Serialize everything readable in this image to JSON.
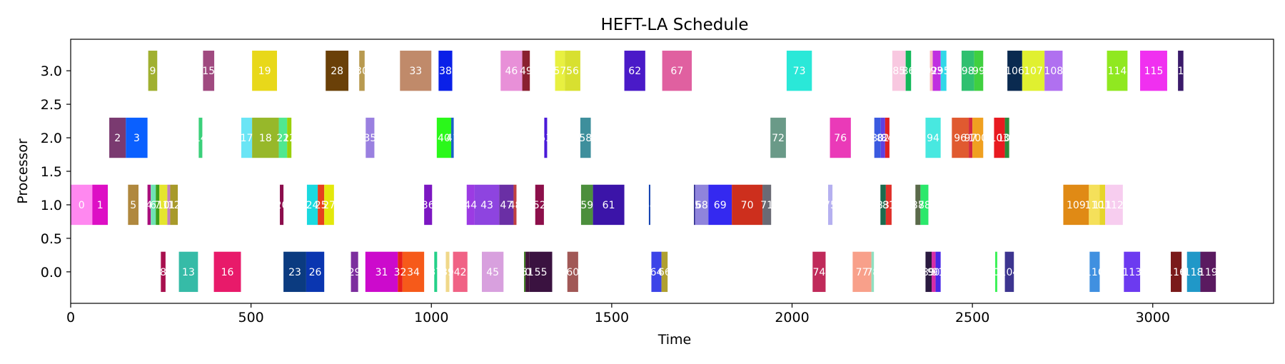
{
  "chart_data": {
    "type": "gantt",
    "title": "HEFT-LA Schedule",
    "xlabel": "Time",
    "ylabel": "Processor",
    "xlim": [
      0,
      3335
    ],
    "ylim": [
      -0.47,
      3.47
    ],
    "xticks": [
      0,
      500,
      1000,
      1500,
      2000,
      2500,
      3000
    ],
    "yticks": [
      0.0,
      0.5,
      1.0,
      1.5,
      2.0,
      2.5,
      3.0
    ],
    "xtick_labels": [
      "0",
      "500",
      "1000",
      "1500",
      "2000",
      "2500",
      "3000"
    ],
    "ytick_labels": [
      "0.0",
      "0.5",
      "1.0",
      "1.5",
      "2.0",
      "2.5",
      "3.0"
    ],
    "bar_height": 0.6,
    "grid": false,
    "tasks": [
      {
        "label": "0",
        "proc": 1,
        "start": 0,
        "end": 60,
        "color": "#ff88f0"
      },
      {
        "label": "1",
        "proc": 1,
        "start": 60,
        "end": 103,
        "color": "#dd0fc5"
      },
      {
        "label": "5",
        "proc": 1,
        "start": 159,
        "end": 188,
        "color": "#b0883e"
      },
      {
        "label": "4",
        "proc": 1,
        "start": 213,
        "end": 222,
        "color": "#a80e7c"
      },
      {
        "label": "6",
        "proc": 1,
        "start": 222,
        "end": 236,
        "color": "#6fe3b3"
      },
      {
        "label": "7",
        "proc": 1,
        "start": 236,
        "end": 246,
        "color": "#3c9e1a"
      },
      {
        "label": "10",
        "proc": 1,
        "start": 246,
        "end": 268,
        "color": "#e5e52e"
      },
      {
        "label": "11",
        "proc": 1,
        "start": 268,
        "end": 276,
        "color": "#c080c0"
      },
      {
        "label": "12",
        "proc": 1,
        "start": 276,
        "end": 297,
        "color": "#a89a2a"
      },
      {
        "label": "20",
        "proc": 1,
        "start": 580,
        "end": 590,
        "color": "#8b0d4c"
      },
      {
        "label": "24",
        "proc": 1,
        "start": 655,
        "end": 685,
        "color": "#1ad9df"
      },
      {
        "label": "25",
        "proc": 1,
        "start": 685,
        "end": 703,
        "color": "#e6401e"
      },
      {
        "label": "27",
        "proc": 1,
        "start": 703,
        "end": 730,
        "color": "#e3e80b"
      },
      {
        "label": "36",
        "proc": 1,
        "start": 980,
        "end": 1002,
        "color": "#7c17c2"
      },
      {
        "label": "44",
        "proc": 1,
        "start": 1098,
        "end": 1120,
        "color": "#9c3be3"
      },
      {
        "label": "43",
        "proc": 1,
        "start": 1120,
        "end": 1188,
        "color": "#8e44e0"
      },
      {
        "label": "47",
        "proc": 1,
        "start": 1188,
        "end": 1228,
        "color": "#6a2fa5"
      },
      {
        "label": "48",
        "proc": 1,
        "start": 1228,
        "end": 1236,
        "color": "#c04040"
      },
      {
        "label": "52",
        "proc": 1,
        "start": 1288,
        "end": 1312,
        "color": "#8c0f4a"
      },
      {
        "label": "59",
        "proc": 1,
        "start": 1415,
        "end": 1448,
        "color": "#4c8f3c"
      },
      {
        "label": "61",
        "proc": 1,
        "start": 1448,
        "end": 1535,
        "color": "#3b14a8"
      },
      {
        "label": "64",
        "proc": 1,
        "start": 1603,
        "end": 1607,
        "color": "#1040b0"
      },
      {
        "label": "65",
        "proc": 1,
        "start": 1728,
        "end": 1731,
        "color": "#1a1a80"
      },
      {
        "label": "68",
        "proc": 1,
        "start": 1731,
        "end": 1768,
        "color": "#8f84dc"
      },
      {
        "label": "69",
        "proc": 1,
        "start": 1768,
        "end": 1833,
        "color": "#3429f0"
      },
      {
        "label": "70",
        "proc": 1,
        "start": 1833,
        "end": 1918,
        "color": "#cd2f1d"
      },
      {
        "label": "71",
        "proc": 1,
        "start": 1918,
        "end": 1942,
        "color": "#6a6a74"
      },
      {
        "label": "75",
        "proc": 1,
        "start": 2100,
        "end": 2112,
        "color": "#b5b0f0"
      },
      {
        "label": "83",
        "proc": 1,
        "start": 2245,
        "end": 2260,
        "color": "#1b6b4e"
      },
      {
        "label": "81",
        "proc": 1,
        "start": 2260,
        "end": 2276,
        "color": "#e0302a"
      },
      {
        "label": "87",
        "proc": 1,
        "start": 2342,
        "end": 2356,
        "color": "#5a6a4a"
      },
      {
        "label": "88",
        "proc": 1,
        "start": 2356,
        "end": 2378,
        "color": "#2be86b"
      },
      {
        "label": "109",
        "proc": 1,
        "start": 2752,
        "end": 2823,
        "color": "#e08a15"
      },
      {
        "label": "110",
        "proc": 1,
        "start": 2823,
        "end": 2853,
        "color": "#f5e05a"
      },
      {
        "label": "111",
        "proc": 1,
        "start": 2853,
        "end": 2868,
        "color": "#e6d52a"
      },
      {
        "label": "112",
        "proc": 1,
        "start": 2868,
        "end": 2917,
        "color": "#f7cdef"
      },
      {
        "label": "8",
        "proc": 0,
        "start": 250,
        "end": 263,
        "color": "#a8104e"
      },
      {
        "label": "13",
        "proc": 0,
        "start": 300,
        "end": 353,
        "color": "#36bba7"
      },
      {
        "label": "16",
        "proc": 0,
        "start": 397,
        "end": 472,
        "color": "#e81a6a"
      },
      {
        "label": "23",
        "proc": 0,
        "start": 590,
        "end": 653,
        "color": "#0b3b80"
      },
      {
        "label": "26",
        "proc": 0,
        "start": 653,
        "end": 703,
        "color": "#0a36b0"
      },
      {
        "label": "29",
        "proc": 0,
        "start": 777,
        "end": 797,
        "color": "#7c2e9e"
      },
      {
        "label": "31",
        "proc": 0,
        "start": 817,
        "end": 907,
        "color": "#cc0acc"
      },
      {
        "label": "32",
        "proc": 0,
        "start": 907,
        "end": 920,
        "color": "#e8201a"
      },
      {
        "label": "34",
        "proc": 0,
        "start": 920,
        "end": 980,
        "color": "#f65a1a"
      },
      {
        "label": "37",
        "proc": 0,
        "start": 1008,
        "end": 1016,
        "color": "#24d088"
      },
      {
        "label": "39",
        "proc": 0,
        "start": 1040,
        "end": 1050,
        "color": "#f0d88a"
      },
      {
        "label": "42",
        "proc": 0,
        "start": 1060,
        "end": 1100,
        "color": "#f06285"
      },
      {
        "label": "45",
        "proc": 0,
        "start": 1140,
        "end": 1200,
        "color": "#d8a0de"
      },
      {
        "label": "50",
        "proc": 0,
        "start": 1257,
        "end": 1261,
        "color": "#3a7a1a"
      },
      {
        "label": "51",
        "proc": 0,
        "start": 1261,
        "end": 1272,
        "color": "#40143a"
      },
      {
        "label": "55",
        "proc": 0,
        "start": 1272,
        "end": 1335,
        "color": "#3a1240"
      },
      {
        "label": "60",
        "proc": 0,
        "start": 1377,
        "end": 1407,
        "color": "#a15856"
      },
      {
        "label": "64",
        "proc": 0,
        "start": 1610,
        "end": 1638,
        "color": "#3c44e8"
      },
      {
        "label": "66",
        "proc": 0,
        "start": 1638,
        "end": 1655,
        "color": "#b0a030"
      },
      {
        "label": "74",
        "proc": 0,
        "start": 2057,
        "end": 2093,
        "color": "#c02a5a"
      },
      {
        "label": "77",
        "proc": 0,
        "start": 2168,
        "end": 2220,
        "color": "#f8a08a"
      },
      {
        "label": "78",
        "proc": 0,
        "start": 2220,
        "end": 2227,
        "color": "#90e0c0"
      },
      {
        "label": "89",
        "proc": 0,
        "start": 2370,
        "end": 2387,
        "color": "#2a1a40"
      },
      {
        "label": "90",
        "proc": 0,
        "start": 2387,
        "end": 2398,
        "color": "#d52da8"
      },
      {
        "label": "91",
        "proc": 0,
        "start": 2398,
        "end": 2412,
        "color": "#4a28e8"
      },
      {
        "label": "102",
        "proc": 0,
        "start": 2563,
        "end": 2569,
        "color": "#3ff25a"
      },
      {
        "label": "104",
        "proc": 0,
        "start": 2590,
        "end": 2615,
        "color": "#3d3590"
      },
      {
        "label": "110",
        "proc": 0,
        "start": 2825,
        "end": 2853,
        "color": "#4090e0"
      },
      {
        "label": "113",
        "proc": 0,
        "start": 2920,
        "end": 2965,
        "color": "#6c3af0"
      },
      {
        "label": "116",
        "proc": 0,
        "start": 3050,
        "end": 3080,
        "color": "#7a1a1a"
      },
      {
        "label": "118",
        "proc": 0,
        "start": 3095,
        "end": 3132,
        "color": "#2098c8"
      },
      {
        "label": "119",
        "proc": 0,
        "start": 3132,
        "end": 3175,
        "color": "#5a1a60"
      },
      {
        "label": "2",
        "proc": 2,
        "start": 107,
        "end": 153,
        "color": "#7a3a70"
      },
      {
        "label": "3",
        "proc": 2,
        "start": 153,
        "end": 213,
        "color": "#0a60ff"
      },
      {
        "label": "14",
        "proc": 2,
        "start": 355,
        "end": 365,
        "color": "#3ad07a"
      },
      {
        "label": "17",
        "proc": 2,
        "start": 473,
        "end": 503,
        "color": "#6ae5f5"
      },
      {
        "label": "18",
        "proc": 2,
        "start": 503,
        "end": 577,
        "color": "#97b82a"
      },
      {
        "label": "21",
        "proc": 2,
        "start": 577,
        "end": 600,
        "color": "#50e890"
      },
      {
        "label": "22",
        "proc": 2,
        "start": 600,
        "end": 612,
        "color": "#9ad00a"
      },
      {
        "label": "35",
        "proc": 2,
        "start": 818,
        "end": 842,
        "color": "#9a80e0"
      },
      {
        "label": "40",
        "proc": 2,
        "start": 1015,
        "end": 1055,
        "color": "#2af81a"
      },
      {
        "label": "41",
        "proc": 2,
        "start": 1055,
        "end": 1062,
        "color": "#1a60c8"
      },
      {
        "label": "53",
        "proc": 2,
        "start": 1313,
        "end": 1321,
        "color": "#4a1ad8"
      },
      {
        "label": "58",
        "proc": 2,
        "start": 1413,
        "end": 1442,
        "color": "#3e8f9c"
      },
      {
        "label": "72",
        "proc": 2,
        "start": 1940,
        "end": 1983,
        "color": "#6a9a88"
      },
      {
        "label": "76",
        "proc": 2,
        "start": 2105,
        "end": 2163,
        "color": "#ea3ab8"
      },
      {
        "label": "80",
        "proc": 2,
        "start": 2228,
        "end": 2246,
        "color": "#3a5ae0"
      },
      {
        "label": "82",
        "proc": 2,
        "start": 2246,
        "end": 2258,
        "color": "#6040e0"
      },
      {
        "label": "84",
        "proc": 2,
        "start": 2258,
        "end": 2270,
        "color": "#e02020"
      },
      {
        "label": "94",
        "proc": 2,
        "start": 2370,
        "end": 2412,
        "color": "#48e8e0"
      },
      {
        "label": "96",
        "proc": 2,
        "start": 2443,
        "end": 2490,
        "color": "#e05a30"
      },
      {
        "label": "97",
        "proc": 2,
        "start": 2490,
        "end": 2500,
        "color": "#d42a40"
      },
      {
        "label": "100",
        "proc": 2,
        "start": 2500,
        "end": 2530,
        "color": "#f0a020"
      },
      {
        "label": "103",
        "proc": 2,
        "start": 2560,
        "end": 2590,
        "color": "#e81a20"
      },
      {
        "label": "105",
        "proc": 2,
        "start": 2590,
        "end": 2602,
        "color": "#2a8a3a"
      },
      {
        "label": "9",
        "proc": 3,
        "start": 215,
        "end": 240,
        "color": "#a0b030"
      },
      {
        "label": "15",
        "proc": 3,
        "start": 367,
        "end": 398,
        "color": "#a04a80"
      },
      {
        "label": "19",
        "proc": 3,
        "start": 503,
        "end": 572,
        "color": "#e8d81a"
      },
      {
        "label": "28",
        "proc": 3,
        "start": 707,
        "end": 770,
        "color": "#6a4008"
      },
      {
        "label": "30",
        "proc": 3,
        "start": 800,
        "end": 815,
        "color": "#b89a50"
      },
      {
        "label": "33",
        "proc": 3,
        "start": 913,
        "end": 1000,
        "color": "#c08a6a"
      },
      {
        "label": "38",
        "proc": 3,
        "start": 1020,
        "end": 1058,
        "color": "#0a20e8"
      },
      {
        "label": "46",
        "proc": 3,
        "start": 1192,
        "end": 1252,
        "color": "#e890d8"
      },
      {
        "label": "49",
        "proc": 3,
        "start": 1252,
        "end": 1273,
        "color": "#8a2030"
      },
      {
        "label": "57",
        "proc": 3,
        "start": 1343,
        "end": 1370,
        "color": "#e8f040"
      },
      {
        "label": "56",
        "proc": 3,
        "start": 1370,
        "end": 1413,
        "color": "#d8e030"
      },
      {
        "label": "62",
        "proc": 3,
        "start": 1535,
        "end": 1593,
        "color": "#4a1ac8"
      },
      {
        "label": "67",
        "proc": 3,
        "start": 1640,
        "end": 1722,
        "color": "#e060a0"
      },
      {
        "label": "73",
        "proc": 3,
        "start": 1985,
        "end": 2055,
        "color": "#2ae8d8"
      },
      {
        "label": "85",
        "proc": 3,
        "start": 2278,
        "end": 2315,
        "color": "#f8c8e0"
      },
      {
        "label": "86",
        "proc": 3,
        "start": 2315,
        "end": 2330,
        "color": "#12b85a"
      },
      {
        "label": "92",
        "proc": 3,
        "start": 2382,
        "end": 2390,
        "color": "#f8c0c0"
      },
      {
        "label": "93",
        "proc": 3,
        "start": 2390,
        "end": 2412,
        "color": "#c030e0"
      },
      {
        "label": "95",
        "proc": 3,
        "start": 2412,
        "end": 2428,
        "color": "#30d8e8"
      },
      {
        "label": "98",
        "proc": 3,
        "start": 2470,
        "end": 2505,
        "color": "#30c070"
      },
      {
        "label": "99",
        "proc": 3,
        "start": 2505,
        "end": 2530,
        "color": "#40d040"
      },
      {
        "label": "106",
        "proc": 3,
        "start": 2597,
        "end": 2638,
        "color": "#0a2a50"
      },
      {
        "label": "107",
        "proc": 3,
        "start": 2638,
        "end": 2700,
        "color": "#e0f030"
      },
      {
        "label": "108",
        "proc": 3,
        "start": 2700,
        "end": 2750,
        "color": "#b070f0"
      },
      {
        "label": "114",
        "proc": 3,
        "start": 2873,
        "end": 2930,
        "color": "#90e820"
      },
      {
        "label": "115",
        "proc": 3,
        "start": 2965,
        "end": 3040,
        "color": "#f030f0"
      },
      {
        "label": "117",
        "proc": 3,
        "start": 3070,
        "end": 3085,
        "color": "#3a1a6a"
      }
    ]
  }
}
